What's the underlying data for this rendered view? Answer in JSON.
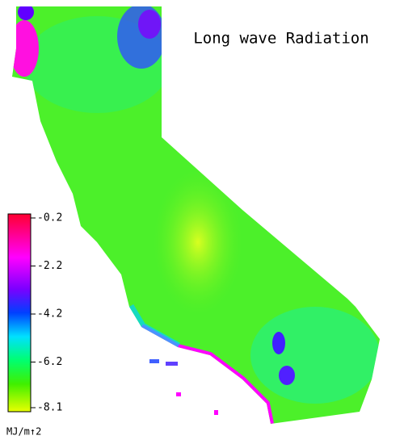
{
  "title": "Long wave Radiation",
  "colorbar": {
    "range": [
      -8.1,
      -0.2
    ],
    "ticks": [
      -0.2,
      -2.2,
      -4.2,
      -6.2,
      -8.1
    ],
    "unit": "MJ/m↑2"
  }
}
